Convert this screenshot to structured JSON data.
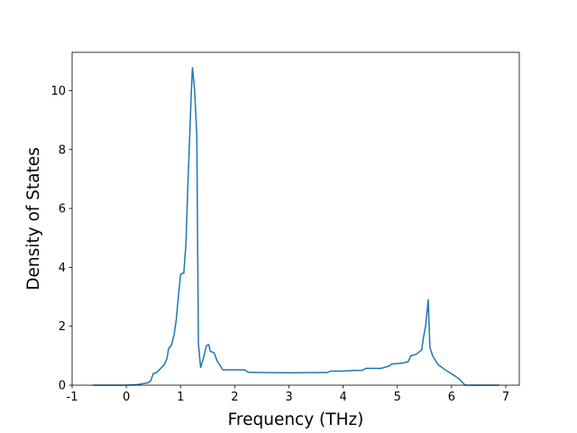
{
  "chart_data": {
    "type": "line",
    "x_label": "Frequency (THz)",
    "y_label": "Density of States",
    "x": [
      -0.62,
      0,
      0.2,
      0.4,
      0.45,
      0.5,
      0.55,
      0.6,
      0.7,
      0.75,
      0.78,
      0.83,
      0.88,
      0.92,
      0.96,
      1.0,
      1.03,
      1.06,
      1.1,
      1.13,
      1.17,
      1.2,
      1.22,
      1.26,
      1.3,
      1.33,
      1.37,
      1.42,
      1.48,
      1.52,
      1.55,
      1.62,
      1.68,
      1.72,
      1.78,
      2.0,
      2.18,
      2.25,
      2.5,
      3.0,
      3.5,
      3.7,
      3.78,
      4.0,
      4.2,
      4.35,
      4.42,
      4.7,
      4.85,
      4.9,
      5.1,
      5.2,
      5.25,
      5.35,
      5.45,
      5.48,
      5.52,
      5.55,
      5.57,
      5.6,
      5.65,
      5.75,
      5.9,
      6.05,
      6.15,
      6.2,
      6.25,
      6.88
    ],
    "series": [
      {
        "color": "#1f77b4",
        "values": [
          0,
          0,
          0.02,
          0.08,
          0.15,
          0.4,
          0.42,
          0.5,
          0.7,
          0.9,
          1.25,
          1.35,
          1.7,
          2.2,
          3.0,
          3.75,
          3.8,
          3.8,
          4.8,
          6.5,
          8.5,
          10.0,
          10.78,
          10.0,
          8.5,
          1.4,
          0.6,
          0.9,
          1.35,
          1.38,
          1.15,
          1.1,
          0.8,
          0.7,
          0.52,
          0.52,
          0.52,
          0.44,
          0.43,
          0.42,
          0.43,
          0.43,
          0.48,
          0.48,
          0.5,
          0.5,
          0.57,
          0.57,
          0.65,
          0.72,
          0.75,
          0.8,
          1.0,
          1.05,
          1.2,
          1.6,
          2.0,
          2.5,
          2.9,
          1.3,
          1.0,
          0.7,
          0.5,
          0.33,
          0.2,
          0.1,
          0,
          0
        ]
      }
    ],
    "xlim": [
      -1,
      7.25
    ],
    "ylim": [
      0,
      11.3
    ],
    "xticks": [
      -1,
      0,
      1,
      2,
      3,
      4,
      5,
      6,
      7
    ],
    "yticks": [
      0,
      2,
      4,
      6,
      8,
      10
    ]
  }
}
